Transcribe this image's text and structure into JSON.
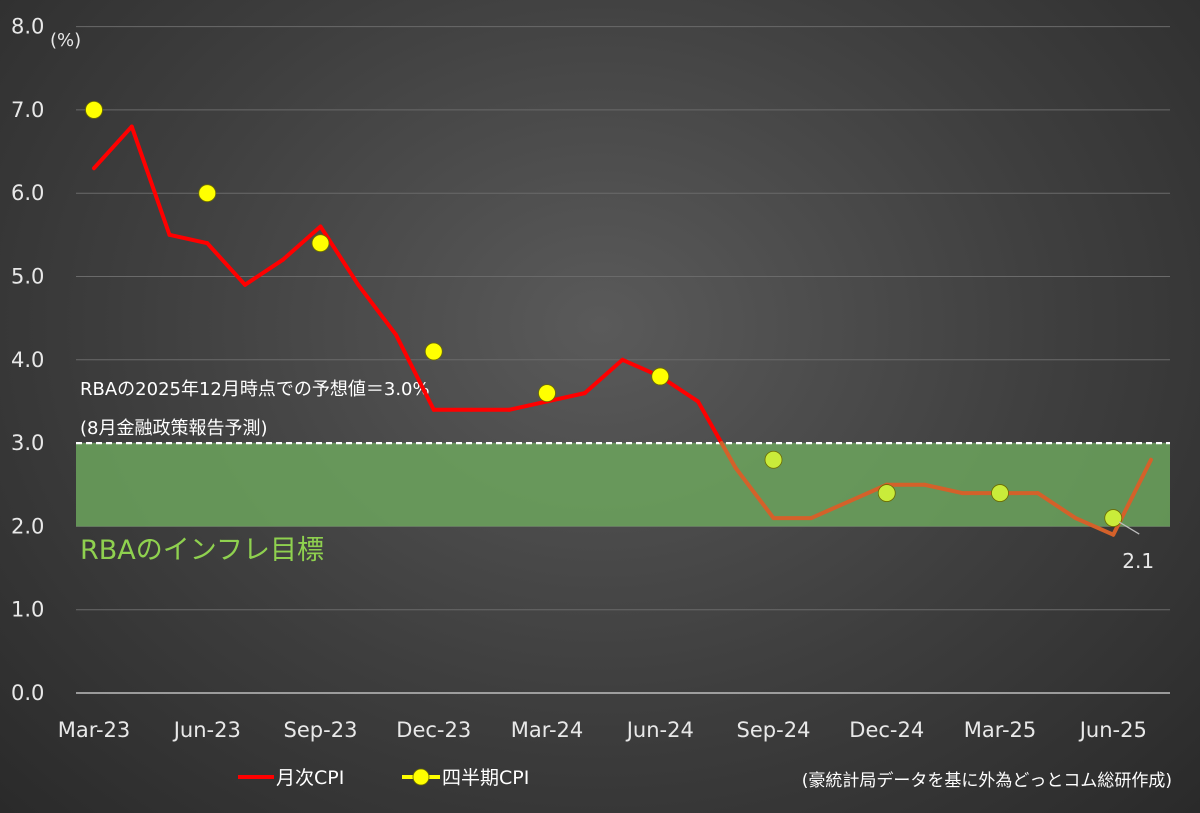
{
  "chart_data": {
    "type": "line",
    "unit_label": "(%)",
    "ylim": [
      0,
      8
    ],
    "y_ticks": [
      "0.0",
      "1.0",
      "2.0",
      "3.0",
      "4.0",
      "5.0",
      "6.0",
      "7.0",
      "8.0"
    ],
    "x_tick_labels": [
      "Mar-23",
      "Jun-23",
      "Sep-23",
      "Dec-23",
      "Mar-24",
      "Jun-24",
      "Sep-24",
      "Dec-24",
      "Mar-25",
      "Jun-25"
    ],
    "months": [
      "Mar-23",
      "Apr-23",
      "May-23",
      "Jun-23",
      "Jul-23",
      "Aug-23",
      "Sep-23",
      "Oct-23",
      "Nov-23",
      "Dec-23",
      "Jan-24",
      "Feb-24",
      "Mar-24",
      "Apr-24",
      "May-24",
      "Jun-24",
      "Jul-24",
      "Aug-24",
      "Sep-24",
      "Oct-24",
      "Nov-24",
      "Dec-24",
      "Jan-25",
      "Feb-25",
      "Mar-25",
      "Apr-25",
      "May-25",
      "Jun-25",
      "Jul-25"
    ],
    "series": [
      {
        "name": "月次CPI",
        "color": "#ff0000",
        "color_in_band": "#d4612a",
        "values": [
          6.3,
          6.8,
          5.5,
          5.4,
          4.9,
          5.2,
          5.6,
          4.9,
          4.3,
          3.4,
          3.4,
          3.4,
          3.5,
          3.6,
          4.0,
          3.8,
          3.5,
          2.7,
          2.1,
          2.1,
          2.3,
          2.5,
          2.5,
          2.4,
          2.4,
          2.4,
          2.1,
          1.9,
          2.8
        ]
      },
      {
        "name": "四半期CPI",
        "color": "#ffff00",
        "color_in_band": "#c9ec3a",
        "x": [
          "Mar-23",
          "Jun-23",
          "Sep-23",
          "Dec-23",
          "Mar-24",
          "Jun-24",
          "Sep-24",
          "Dec-24",
          "Mar-25",
          "Jun-25"
        ],
        "values": [
          7.0,
          6.0,
          5.4,
          4.1,
          3.6,
          3.8,
          2.8,
          2.4,
          2.4,
          2.1
        ]
      }
    ],
    "target_band": {
      "low": 2.0,
      "high": 3.0,
      "label": "RBAのインフレ目標",
      "color": "#6ea85e"
    },
    "forecast_line": {
      "value": 3.0,
      "label_line1": "RBAの2025年12月時点での予想値＝3.0%",
      "label_line2": "(8月金融政策報告予測)"
    },
    "data_label": {
      "text": "2.1",
      "series": "四半期CPI",
      "x": "Jun-25"
    },
    "legend": {
      "position": "bottom"
    },
    "grid": true
  },
  "source_note": "(豪統計局データを基に外為どっとコム総研作成)"
}
